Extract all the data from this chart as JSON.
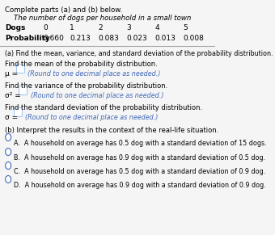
{
  "title_line1": "Complete parts (a) and (b) below.",
  "title_line2": "The number of dogs per household in a small town",
  "table_headers": [
    "Dogs",
    "0",
    "1",
    "2",
    "3",
    "4",
    "5"
  ],
  "table_row1_label": "Probability",
  "table_row1_values": [
    "0.660",
    "0.213",
    "0.083",
    "0.023",
    "0.013",
    "0.008"
  ],
  "section_a_intro": "(a) Find the mean, variance, and standard deviation of the probability distribution.",
  "mean_label": "Find the mean of the probability distribution.",
  "mean_eq": "μ = ",
  "mean_hint": "(Round to one decimal place as needed.)",
  "variance_label": "Find the variance of the probability distribution.",
  "variance_eq": "σ² = ",
  "variance_hint": "(Round to one decimal place as needed.)",
  "std_label": "Find the standard deviation of the probability distribution.",
  "std_eq": "σ = ",
  "std_hint": "(Round to one decimal place as needed.)",
  "section_b_intro": "(b) Interpret the results in the context of the real-life situation.",
  "options": [
    "A.  A household on average has 0.5 dog with a standard deviation of 15 dogs.",
    "B.  A household on average has 0.9 dog with a standard deviation of 0.5 dog.",
    "C.  A household on average has 0.5 dog with a standard deviation of 0.9 dog.",
    "D.  A household on average has 0.9 dog with a standard deviation of 0.9 dog."
  ],
  "bg_color": "#f0f0f0",
  "text_color": "#000000",
  "blue_color": "#4169b8",
  "hint_color": "#4169b8",
  "box_color": "#a8c8f0",
  "table_header_bg": "#e8e8e8"
}
